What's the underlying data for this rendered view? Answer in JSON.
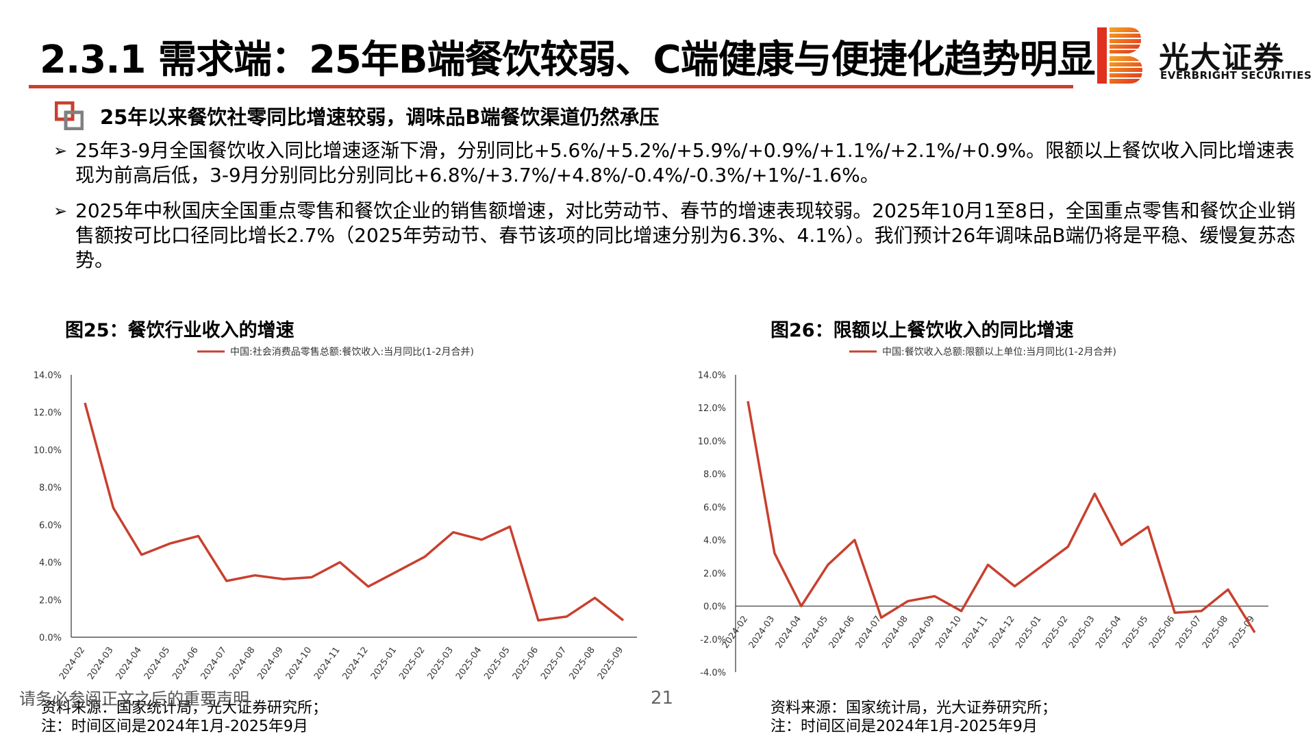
{
  "header": {
    "title": "2.3.1 需求端：25年B端餐饮较弱、C端健康与便捷化趋势明显",
    "logo_cn": "光大证券",
    "logo_en": "EVERBRIGHT SECURITIES",
    "accent": "#c8402e"
  },
  "section": {
    "icon": "nested-squares-icon",
    "heading": "25年以来餐饮社零同比增速较弱，调味品B端餐饮渠道仍然承压"
  },
  "bullets": [
    {
      "marker": "➢",
      "text": "25年3-9月全国餐饮收入同比增速逐渐下滑，分别同比+5.6%/+5.2%/+5.9%/+0.9%/+1.1%/+2.1%/+0.9%。限额以上餐饮收入同比增速表现为前高后低，3-9月分别同比分别同比+6.8%/+3.7%/+4.8%/-0.4%/-0.3%/+1%/-1.6%。"
    },
    {
      "marker": "➢",
      "text": "2025年中秋国庆全国重点零售和餐饮企业的销售额增速，对比劳动节、春节的增速表现较弱。2025年10月1至8日，全国重点零售和餐饮企业销售额按可比口径同比增长2.7%（2025年劳动节、春节该项的同比增速分别为6.3%、4.1%）。我们预计26年调味品B端仍将是平稳、缓慢复苏态势。"
    }
  ],
  "figures": [
    {
      "title": "图25：餐饮行业收入的增速",
      "source": "资料来源：国家统计局，光大证券研究所；",
      "note": "注：时间区间是2024年1月-2025年9月"
    },
    {
      "title": "图26：限额以上餐饮收入的同比增速",
      "source": "资料来源：国家统计局，光大证券研究所；",
      "note": "注：时间区间是2024年1月-2025年9月"
    }
  ],
  "chart_data": [
    {
      "type": "line",
      "title": "",
      "legend": "中国:社会消费品零售总额:餐饮收入:当月同比(1-2月合并)",
      "legend_position": "top",
      "x": [
        "2024-02",
        "2024-03",
        "2024-04",
        "2024-05",
        "2024-06",
        "2024-07",
        "2024-08",
        "2024-09",
        "2024-10",
        "2024-11",
        "2024-12",
        "2025-01",
        "2025-02",
        "2025-03",
        "2025-04",
        "2025-05",
        "2025-06",
        "2025-07",
        "2025-08",
        "2025-09"
      ],
      "series": [
        {
          "name": "中国:社会消费品零售总额:餐饮收入:当月同比(1-2月合并)",
          "values": [
            12.5,
            6.9,
            4.4,
            5.0,
            5.4,
            3.0,
            3.3,
            3.1,
            3.2,
            4.0,
            2.7,
            3.5,
            4.3,
            5.6,
            5.2,
            5.9,
            0.9,
            1.1,
            2.1,
            0.9
          ]
        }
      ],
      "yticks": [
        "0.0%",
        "2.0%",
        "4.0%",
        "6.0%",
        "8.0%",
        "10.0%",
        "12.0%",
        "14.0%"
      ],
      "ylim": [
        0,
        14
      ],
      "grid": false,
      "line_color": "#c8402e"
    },
    {
      "type": "line",
      "title": "",
      "legend": "中国:餐饮收入总额:限额以上单位:当月同比(1-2月合并)",
      "legend_position": "top",
      "x": [
        "2024-02",
        "2024-03",
        "2024-04",
        "2024-05",
        "2024-06",
        "2024-07",
        "2024-08",
        "2024-09",
        "2024-10",
        "2024-11",
        "2024-12",
        "2025-01",
        "2025-02",
        "2025-03",
        "2025-04",
        "2025-05",
        "2025-06",
        "2025-07",
        "2025-08",
        "2025-09"
      ],
      "series": [
        {
          "name": "中国:餐饮收入总额:限额以上单位:当月同比(1-2月合并)",
          "values": [
            12.4,
            3.2,
            0.0,
            2.5,
            4.0,
            -0.7,
            0.3,
            0.6,
            -0.3,
            2.5,
            1.2,
            2.4,
            3.6,
            6.8,
            3.7,
            4.8,
            -0.4,
            -0.3,
            1.0,
            -1.6
          ]
        }
      ],
      "yticks": [
        "-4.0%",
        "-2.0%",
        "0.0%",
        "2.0%",
        "4.0%",
        "6.0%",
        "8.0%",
        "10.0%",
        "12.0%",
        "14.0%"
      ],
      "ylim": [
        -4,
        14
      ],
      "grid": false,
      "line_color": "#c8402e"
    }
  ],
  "footer": {
    "disclaimer": "请务必参阅正文之后的重要声明",
    "page_number": "21"
  }
}
